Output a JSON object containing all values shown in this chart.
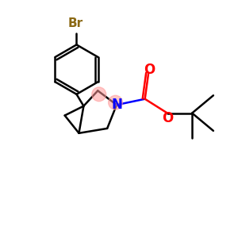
{
  "background_color": "#ffffff",
  "br_label": "Br",
  "br_color": "#8B6914",
  "n_label": "N",
  "n_color": "#0000FF",
  "o_color": "#FF0000",
  "bond_color": "#000000",
  "highlight_color": "#FF9999",
  "highlight_alpha": 0.55,
  "figsize": [
    3.0,
    3.0
  ],
  "dpi": 100
}
